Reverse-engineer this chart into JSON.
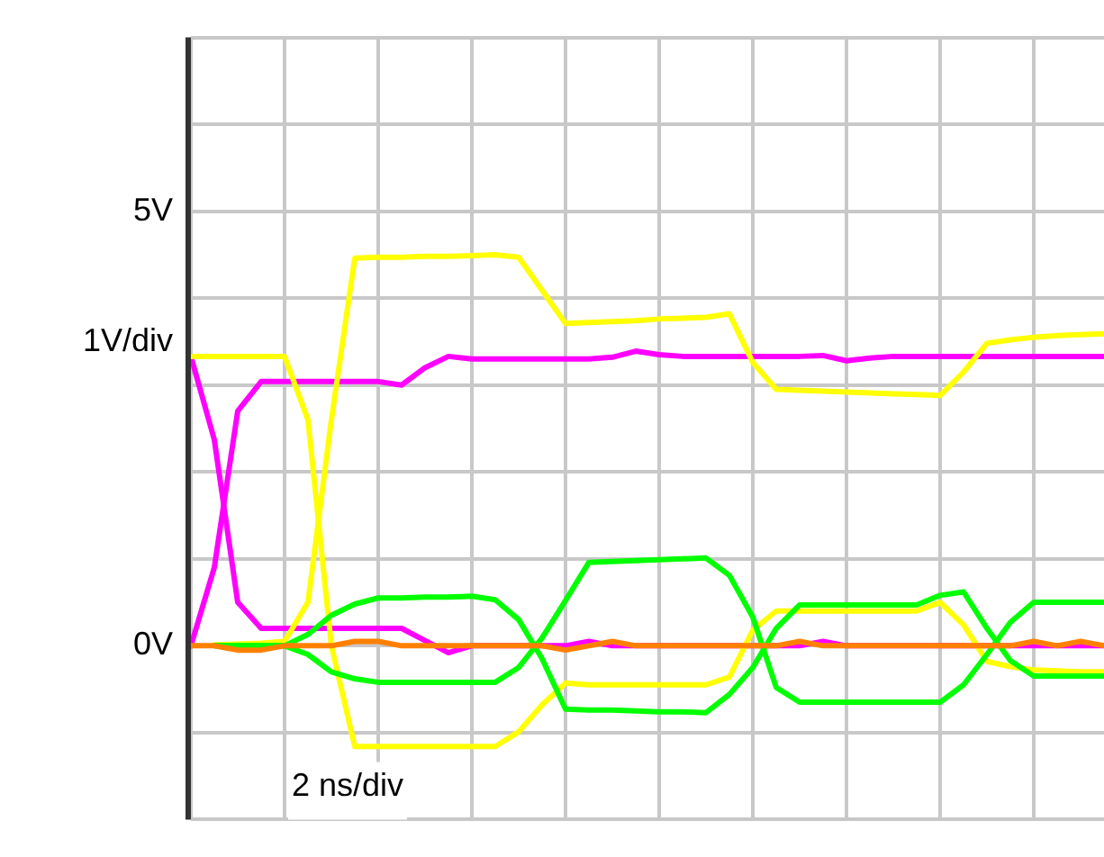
{
  "chart_data": {
    "type": "line",
    "xlabel": "2 ns/div",
    "ylabel": "1V/div",
    "categories": [
      null,
      null,
      null,
      null,
      null,
      null,
      null,
      null,
      null,
      null,
      null,
      null,
      null,
      null,
      null,
      null,
      null,
      null,
      null,
      null,
      null,
      null,
      null,
      null,
      null,
      null,
      null,
      null,
      null,
      null,
      null,
      null,
      null,
      null,
      null,
      null,
      null,
      null,
      null,
      null
    ],
    "ylim": [
      -2,
      7
    ],
    "yticks": [
      {
        "value": -2,
        "label": null
      },
      {
        "value": -1,
        "label": null
      },
      {
        "value": 0,
        "label": "0V"
      },
      {
        "value": 1,
        "label": null
      },
      {
        "value": 2,
        "label": null
      },
      {
        "value": 3,
        "label": null
      },
      {
        "value": 4,
        "label": null
      },
      {
        "value": 5,
        "label": "5V"
      },
      {
        "value": 6,
        "label": null
      },
      {
        "value": 7,
        "label": null
      }
    ],
    "grid": true,
    "legend": false,
    "marker": "none",
    "line_style": "solid",
    "tick_labels": "y",
    "series": [
      {
        "color": "#ff8000",
        "values": [
          0,
          0,
          -0.05,
          -0.05,
          0,
          0,
          0,
          0.05,
          0.05,
          0,
          0,
          0,
          0,
          0,
          0,
          0,
          -0.05,
          0,
          0.05,
          0,
          0,
          0,
          0,
          0,
          0,
          0,
          0.05,
          0,
          0,
          0,
          0,
          0,
          0,
          0,
          0,
          0,
          0.05,
          0,
          0.05,
          0
        ]
      },
      {
        "color": "#00ff00",
        "values": [
          null,
          0,
          0,
          0,
          0,
          0.13,
          0.35,
          0.48,
          0.55,
          0.55,
          0.56,
          0.56,
          0.57,
          0.53,
          0.3,
          -0.15,
          -0.73,
          -0.74,
          -0.74,
          -0.75,
          -0.76,
          -0.76,
          -0.77,
          -0.56,
          -0.25,
          0.2,
          0.47,
          0.47,
          0.47,
          0.47,
          0.47,
          0.47,
          0.58,
          0.62,
          0.2,
          -0.17,
          -0.35,
          -0.35,
          -0.35,
          -0.35
        ]
      },
      {
        "color": "#00ff00",
        "values": [
          null,
          0,
          0,
          0,
          0,
          -0.1,
          -0.3,
          -0.38,
          -0.42,
          -0.42,
          -0.42,
          -0.42,
          -0.42,
          -0.42,
          -0.25,
          0.09,
          0.52,
          0.96,
          0.97,
          0.98,
          0.99,
          1,
          1.01,
          0.81,
          0.33,
          -0.48,
          -0.65,
          -0.65,
          -0.65,
          -0.65,
          -0.65,
          -0.65,
          -0.65,
          -0.45,
          -0.1,
          0.27,
          0.5,
          0.5,
          0.5,
          0.5
        ]
      },
      {
        "color": "#ffff00",
        "values": [
          3.33,
          3.33,
          3.33,
          3.33,
          3.33,
          2.6,
          0,
          -1.16,
          -1.16,
          -1.16,
          -1.16,
          -1.16,
          -1.16,
          -1.16,
          -0.99,
          -0.68,
          -0.43,
          -0.45,
          -0.45,
          -0.45,
          -0.45,
          -0.45,
          -0.45,
          -0.36,
          0.18,
          0.4,
          0.4,
          0.4,
          0.4,
          0.4,
          0.4,
          0.4,
          0.5,
          0.24,
          -0.18,
          -0.24,
          -0.28,
          -0.29,
          -0.3,
          -0.3
        ]
      },
      {
        "color": "#ffff00",
        "values": [
          null,
          0.01,
          0.02,
          0.03,
          0.05,
          0.5,
          2.6,
          4.46,
          4.47,
          4.47,
          4.48,
          4.48,
          4.49,
          4.5,
          4.47,
          4.09,
          3.71,
          3.72,
          3.73,
          3.74,
          3.76,
          3.77,
          3.78,
          3.82,
          3.26,
          2.95,
          2.94,
          2.93,
          2.92,
          2.91,
          2.9,
          2.89,
          2.88,
          3.15,
          3.48,
          3.52,
          3.55,
          3.57,
          3.58,
          3.59
        ]
      },
      {
        "color": "#ff00ff",
        "values": [
          3.33,
          2.37,
          0.5,
          0.2,
          0.2,
          0.2,
          0.2,
          0.2,
          0.2,
          0.2,
          0.06,
          -0.08,
          0,
          0,
          0,
          0,
          0,
          0.05,
          0,
          0,
          0,
          0,
          0,
          0,
          0,
          0,
          0,
          0.05,
          0,
          0,
          0,
          0,
          0,
          0,
          0,
          0,
          0,
          0,
          0,
          0
        ]
      },
      {
        "color": "#ff00ff",
        "values": [
          0,
          0.9,
          2.7,
          3.04,
          3.04,
          3.04,
          3.04,
          3.04,
          3.04,
          3,
          3.2,
          3.33,
          3.3,
          3.3,
          3.3,
          3.3,
          3.3,
          3.3,
          3.32,
          3.39,
          3.35,
          3.33,
          3.33,
          3.33,
          3.33,
          3.33,
          3.33,
          3.34,
          3.28,
          3.31,
          3.33,
          3.33,
          3.33,
          3.33,
          3.33,
          3.33,
          3.33,
          3.33,
          3.33,
          3.33
        ]
      }
    ]
  }
}
